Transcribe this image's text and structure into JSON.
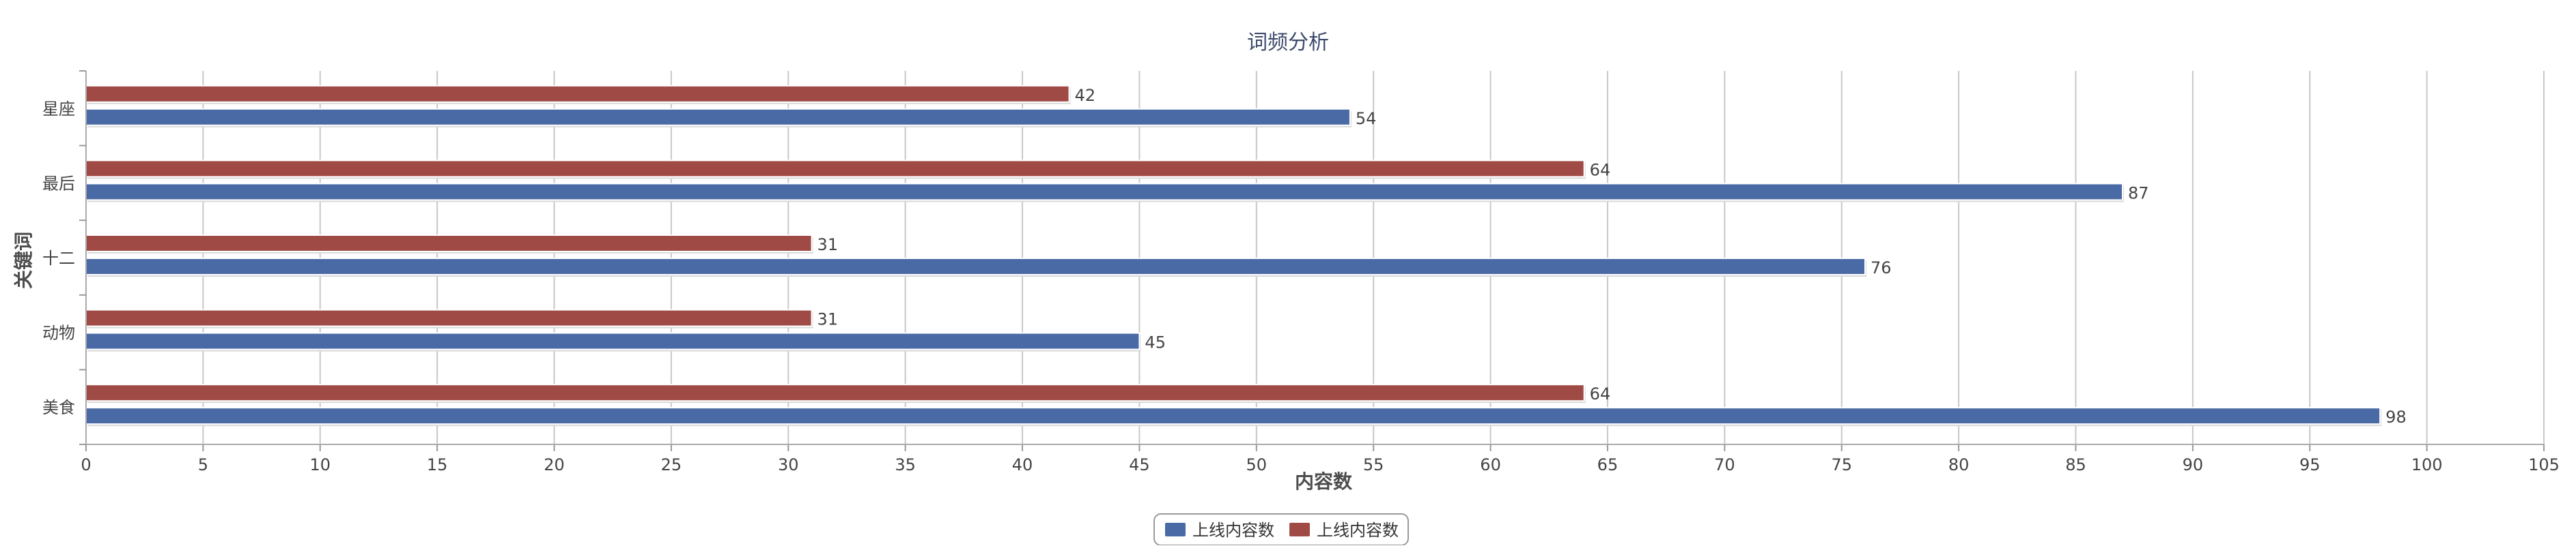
{
  "chart_data": {
    "type": "bar",
    "orientation": "horizontal",
    "title": "词频分析",
    "xlabel": "内容数",
    "ylabel": "关键词",
    "categories": [
      "星座",
      "最后",
      "十二",
      "动物",
      "美食"
    ],
    "series": [
      {
        "name": "上线内容数",
        "color": "#4a6aa5",
        "values": [
          54,
          87,
          76,
          45,
          98
        ]
      },
      {
        "name": "上线内容数",
        "color": "#a04a45",
        "values": [
          42,
          64,
          31,
          31,
          64
        ]
      }
    ],
    "xlim": [
      0,
      105
    ],
    "xticks": [
      0,
      5,
      10,
      15,
      20,
      25,
      30,
      35,
      40,
      45,
      50,
      55,
      60,
      65,
      70,
      75,
      80,
      85,
      90,
      95,
      100,
      105
    ],
    "grid": true,
    "legend_position": "bottom-center",
    "data_labels": true
  }
}
